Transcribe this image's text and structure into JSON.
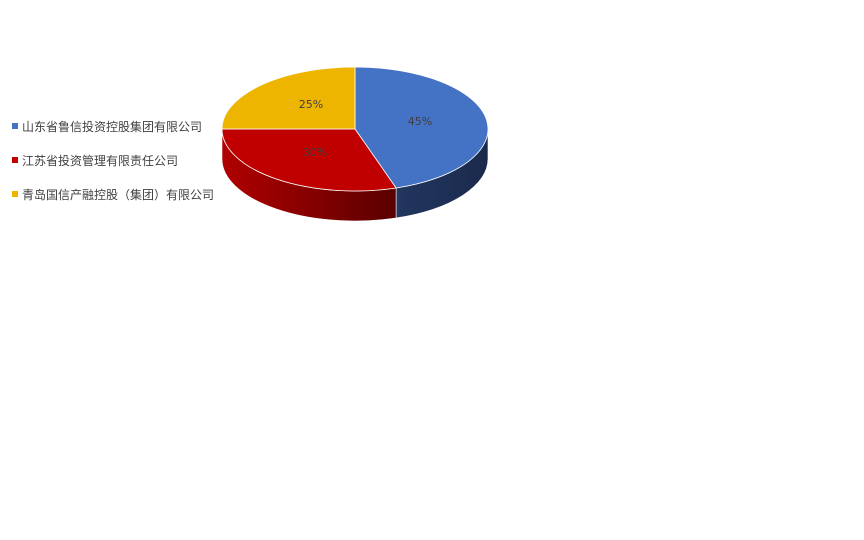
{
  "chart_data": {
    "type": "pie",
    "style": "3d",
    "legend_position": "left",
    "categories": [
      "山东省鲁信投资控股集团有限公司",
      "江苏省投资管理有限责任公司",
      "青岛国信产融控股（集团）有限公司"
    ],
    "values": [
      45,
      30,
      25
    ],
    "data_labels": [
      "45%",
      "30%",
      "25%"
    ],
    "colors": [
      "#4472C4",
      "#C00000",
      "#EEB500"
    ],
    "side_colors": [
      "#1C2E52",
      "#7A0000",
      "#9A7600"
    ]
  }
}
